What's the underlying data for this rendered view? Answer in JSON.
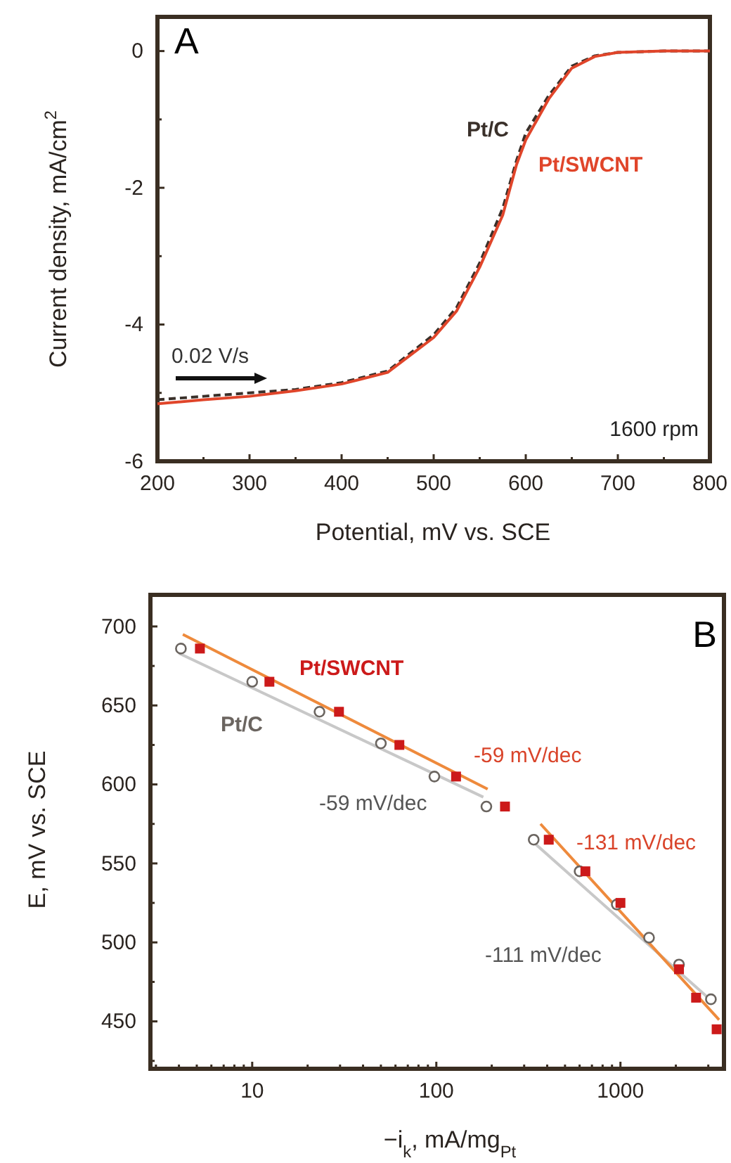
{
  "chart_data": [
    {
      "type": "line",
      "title": "A",
      "xlabel": "Potential, mV vs. SCE",
      "ylabel": "Current density, mA/cm$^{2}$",
      "xlim": [
        200,
        800
      ],
      "ylim": [
        -6,
        0.5
      ],
      "xticks": [
        200,
        {
          "value": 250,
          "label": null
        },
        300,
        {
          "value": 350,
          "label": null
        },
        400,
        {
          "value": 450,
          "label": null
        },
        500,
        {
          "value": 550,
          "label": null
        },
        600,
        {
          "value": 650,
          "label": null
        },
        700,
        {
          "value": 750,
          "label": null
        },
        800
      ],
      "yticks": [
        -6,
        {
          "value": -5,
          "label": null
        },
        -4,
        {
          "value": -3,
          "label": null
        },
        -2,
        {
          "value": -1,
          "label": null
        },
        0
      ],
      "grid": false,
      "series": [
        {
          "name": "Pt/C",
          "color": "#3a302a",
          "line_style": "dashed",
          "x": [
            200,
            250,
            300,
            350,
            400,
            450,
            500,
            525,
            550,
            575,
            590,
            600,
            625,
            650,
            675,
            700,
            750,
            800
          ],
          "values": [
            -5.1,
            -5.05,
            -5.0,
            -4.95,
            -4.85,
            -4.68,
            -4.15,
            -3.75,
            -3.1,
            -2.3,
            -1.6,
            -1.2,
            -0.65,
            -0.22,
            -0.07,
            -0.02,
            0,
            0
          ]
        },
        {
          "name": "Pt/SWCNT",
          "color": "#e0452a",
          "line_style": "solid",
          "x": [
            200,
            250,
            300,
            350,
            400,
            450,
            500,
            525,
            550,
            575,
            590,
            600,
            625,
            650,
            675,
            700,
            750,
            800
          ],
          "values": [
            -5.16,
            -5.1,
            -5.05,
            -4.97,
            -4.87,
            -4.7,
            -4.19,
            -3.8,
            -3.16,
            -2.4,
            -1.66,
            -1.3,
            -0.7,
            -0.25,
            -0.08,
            -0.02,
            0,
            0
          ]
        }
      ],
      "annotations": [
        "0.02 V/s",
        "1600 rpm"
      ]
    },
    {
      "type": "scatter",
      "title": "B",
      "xlabel": "−i$_{k}$, mA/mg$_{Pt}$",
      "ylabel": "E, mV vs. SCE",
      "log": "x",
      "xlim": [
        2.8,
        3650
      ],
      "ylim": [
        420,
        720
      ],
      "xticks": [
        {
          "value": 3,
          "label": null
        },
        {
          "value": 4,
          "label": null
        },
        {
          "value": 5,
          "label": null
        },
        {
          "value": 6,
          "label": null
        },
        {
          "value": 7,
          "label": null
        },
        {
          "value": 8,
          "label": null
        },
        {
          "value": 9,
          "label": null
        },
        10,
        {
          "value": 20,
          "label": null
        },
        {
          "value": 30,
          "label": null
        },
        {
          "value": 40,
          "label": null
        },
        {
          "value": 50,
          "label": null
        },
        {
          "value": 60,
          "label": null
        },
        {
          "value": 70,
          "label": null
        },
        {
          "value": 80,
          "label": null
        },
        {
          "value": 90,
          "label": null
        },
        100,
        {
          "value": 200,
          "label": null
        },
        {
          "value": 300,
          "label": null
        },
        {
          "value": 400,
          "label": null
        },
        {
          "value": 500,
          "label": null
        },
        {
          "value": 600,
          "label": null
        },
        {
          "value": 700,
          "label": null
        },
        {
          "value": 800,
          "label": null
        },
        {
          "value": 900,
          "label": null
        },
        1000,
        {
          "value": 2000,
          "label": null
        },
        {
          "value": 3000,
          "label": null
        }
      ],
      "yticks": [
        {
          "value": 425,
          "label": null
        },
        450,
        {
          "value": 475,
          "label": null
        },
        500,
        {
          "value": 525,
          "label": null
        },
        550,
        {
          "value": 575,
          "label": null
        },
        600,
        {
          "value": 625,
          "label": null
        },
        650,
        {
          "value": 675,
          "label": null
        },
        700
      ],
      "grid": false,
      "series": [
        {
          "type": "line",
          "color": "#c8c8c8",
          "line_style": "solid",
          "x": [
            4.0,
            180
          ],
          "values": [
            683,
            592
          ]
        },
        {
          "type": "line",
          "color": "#c8c8c8",
          "line_style": "solid",
          "x": [
            318,
            3200
          ],
          "values": [
            566,
            462
          ]
        },
        {
          "type": "line",
          "color": "#ee8a3c",
          "line_style": "solid",
          "x": [
            4.2,
            190
          ],
          "values": [
            695,
            597
          ]
        },
        {
          "type": "line",
          "color": "#ee8a3c",
          "line_style": "solid",
          "x": [
            368,
            3435
          ],
          "values": [
            575,
            451
          ]
        },
        {
          "name": "Pt/C",
          "color": "#6b6560",
          "marker": "circle",
          "x": [
            4.1,
            10,
            23.2,
            50,
            97.6,
            187,
            338,
            600,
            955,
            1430,
            2080,
            3100
          ],
          "values": [
            686,
            665,
            646,
            626,
            605,
            586,
            565,
            545,
            524,
            503,
            486,
            464
          ]
        },
        {
          "name": "Pt/SWCNT",
          "color": "#cc1a1a",
          "marker": "square",
          "x": [
            5.2,
            12.4,
            29.6,
            63,
            128,
            236,
            408,
            645,
            1000,
            2080,
            2575,
            3330
          ],
          "values": [
            686,
            665,
            646,
            625,
            605,
            586,
            565,
            545,
            525,
            483,
            465,
            445
          ]
        }
      ],
      "annotations": [
        "-59 mV/dec",
        "-59 mV/dec",
        "-131 mV/dec",
        "-111 mV/dec"
      ]
    }
  ]
}
